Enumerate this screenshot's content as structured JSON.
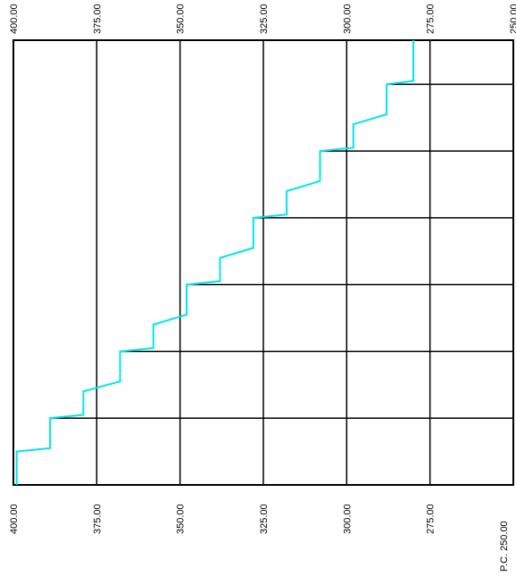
{
  "chart_data": {
    "type": "line",
    "title": "",
    "xlabel": "",
    "ylabel": "",
    "orientation": "rotated-90",
    "elevation_axis": {
      "range": [
        400,
        250
      ],
      "ticks": [
        "400.00",
        "375.00",
        "350.00",
        "325.00",
        "300.00",
        "275.00",
        "250.00"
      ],
      "repeated_top_and_bottom": true,
      "bottom_last_label": "P.C. 250.00"
    },
    "grid": true,
    "series": [
      {
        "color": "#00e5ee",
        "points": [
          {
            "station": 0.0,
            "elevation": 399
          },
          {
            "station": 0.5,
            "elevation": 399
          },
          {
            "station": 0.55,
            "elevation": 389
          },
          {
            "station": 1.0,
            "elevation": 389
          },
          {
            "station": 1.05,
            "elevation": 379
          },
          {
            "station": 1.4,
            "elevation": 379
          },
          {
            "station": 1.55,
            "elevation": 368
          },
          {
            "station": 2.0,
            "elevation": 368
          },
          {
            "station": 2.05,
            "elevation": 358
          },
          {
            "station": 2.4,
            "elevation": 358
          },
          {
            "station": 2.55,
            "elevation": 348
          },
          {
            "station": 3.0,
            "elevation": 348
          },
          {
            "station": 3.05,
            "elevation": 338
          },
          {
            "station": 3.4,
            "elevation": 338
          },
          {
            "station": 3.55,
            "elevation": 328
          },
          {
            "station": 4.0,
            "elevation": 328
          },
          {
            "station": 4.05,
            "elevation": 318
          },
          {
            "station": 4.4,
            "elevation": 318
          },
          {
            "station": 4.55,
            "elevation": 308
          },
          {
            "station": 5.0,
            "elevation": 308
          },
          {
            "station": 5.05,
            "elevation": 298
          },
          {
            "station": 5.4,
            "elevation": 298
          },
          {
            "station": 5.55,
            "elevation": 288
          },
          {
            "station": 6.0,
            "elevation": 288
          },
          {
            "station": 6.05,
            "elevation": 280
          },
          {
            "station": 6.66,
            "elevation": 280
          }
        ]
      }
    ],
    "station_ticks": [
      1.0,
      2.0,
      3.0,
      4.0,
      5.0,
      6.0
    ],
    "station_range": [
      0,
      6.66
    ]
  },
  "colors": {
    "background": "#ffffff",
    "grid": "#000000",
    "profile": "#00e5ee"
  }
}
